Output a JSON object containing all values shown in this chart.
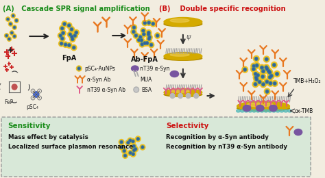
{
  "bg_color": "#f2ede0",
  "panel_a_title": "(A)   Cascade SPR signal amplification",
  "panel_b_title": "(B)    Double specific recognition",
  "panel_a_color": "#1a8c1a",
  "panel_b_color": "#cc1111",
  "bottom_bg": "#d8e8d8",
  "sensitivity_title": "Sensitivity",
  "sensitivity_color": "#1a8c1a",
  "selectivity_title": "Selectivity",
  "selectivity_color": "#cc1111",
  "sens_line1": "Mass effect by catalysis",
  "sens_line2": "Localized surface plasmon resonance",
  "sel_line1": "Recognition by α-Syn antibody",
  "sel_line2": "Recognition by nT39 α-Syn antibody",
  "text_color": "#111111",
  "fpa_label": "FpA",
  "abfpa_label": "Ab-FpA",
  "fep_label": "FeP",
  "psc4_label": "pSC₄",
  "legend_psc_aunps": "pSC₄-AuNPs",
  "legend_nt39": "nT39 α-Syn",
  "legend_alpha_ab": "α-Syn Ab",
  "legend_mua": "MUA",
  "legend_nt39_ab": "nT39 α-Syn Ab",
  "legend_bsa": "BSA",
  "tmb_label": "TMB+H₂O₂",
  "oxtmb_label": "ox-TMB",
  "gold_color": "#f0c020",
  "teal_color": "#4a8888",
  "blue_dot": "#3060a0",
  "orange_color": "#e87820",
  "pink_color": "#e05888",
  "purple_color": "#7855a0",
  "gray_color": "#a8a8a8",
  "cyan_color": "#50b8b8",
  "chip_gold": "#d4aa00",
  "red_c": "#cc2222"
}
